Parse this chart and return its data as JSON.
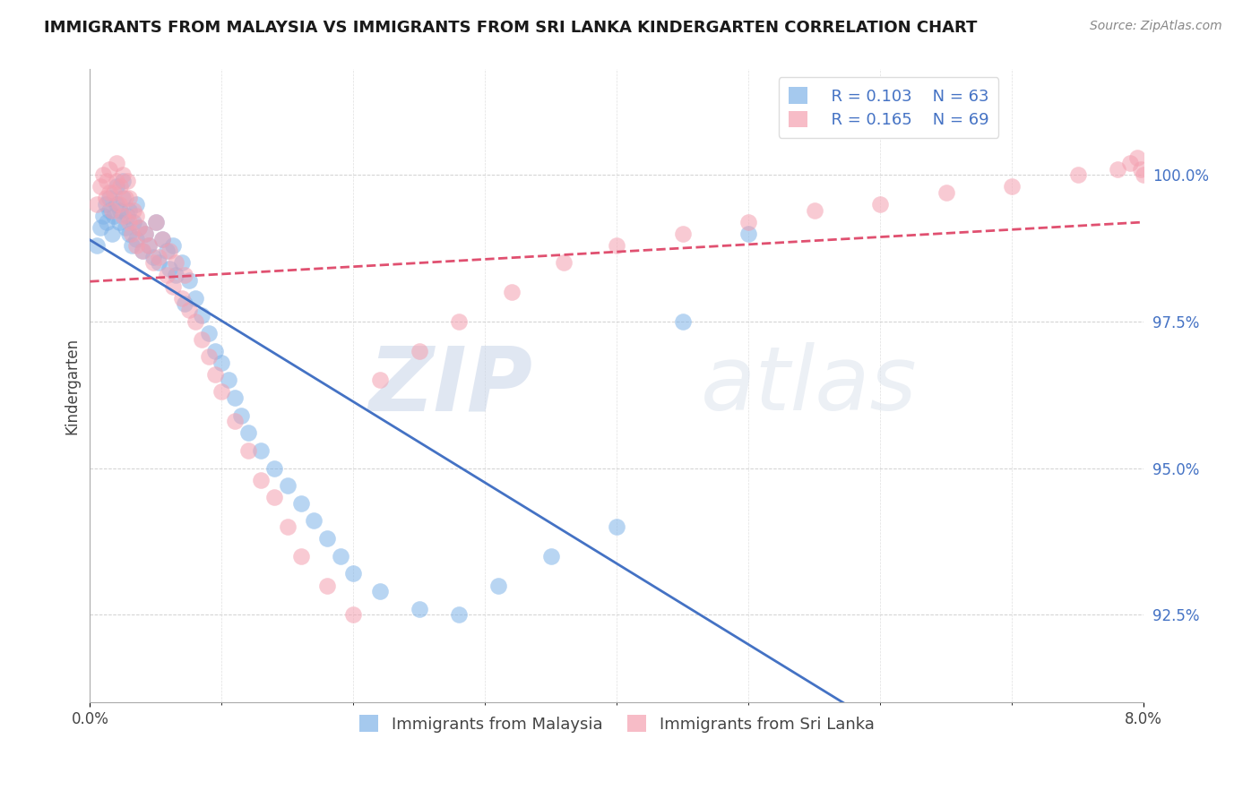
{
  "title": "IMMIGRANTS FROM MALAYSIA VS IMMIGRANTS FROM SRI LANKA KINDERGARTEN CORRELATION CHART",
  "source": "Source: ZipAtlas.com",
  "ylabel": "Kindergarten",
  "xlim": [
    0.0,
    8.0
  ],
  "ylim": [
    91.0,
    101.8
  ],
  "R_malaysia": 0.103,
  "N_malaysia": 63,
  "R_srilanka": 0.165,
  "N_srilanka": 69,
  "color_malaysia": "#7fb3e8",
  "color_srilanka": "#f4a0b0",
  "legend_label_malaysia": "Immigrants from Malaysia",
  "legend_label_srilanka": "Immigrants from Sri Lanka",
  "watermark_zip": "ZIP",
  "watermark_atlas": "atlas",
  "malaysia_x": [
    0.05,
    0.08,
    0.1,
    0.12,
    0.13,
    0.15,
    0.15,
    0.17,
    0.18,
    0.2,
    0.2,
    0.22,
    0.23,
    0.25,
    0.25,
    0.27,
    0.28,
    0.3,
    0.3,
    0.32,
    0.33,
    0.35,
    0.35,
    0.37,
    0.4,
    0.42,
    0.45,
    0.48,
    0.5,
    0.52,
    0.55,
    0.58,
    0.6,
    0.63,
    0.65,
    0.7,
    0.72,
    0.75,
    0.8,
    0.85,
    0.9,
    0.95,
    1.0,
    1.05,
    1.1,
    1.15,
    1.2,
    1.3,
    1.4,
    1.5,
    1.6,
    1.7,
    1.8,
    1.9,
    2.0,
    2.2,
    2.5,
    2.8,
    3.1,
    3.5,
    4.0,
    4.5,
    5.0
  ],
  "malaysia_y": [
    98.8,
    99.1,
    99.3,
    99.5,
    99.2,
    99.4,
    99.6,
    99.0,
    99.3,
    99.5,
    99.8,
    99.2,
    99.4,
    99.6,
    99.9,
    99.1,
    99.3,
    99.0,
    99.4,
    98.8,
    99.2,
    98.9,
    99.5,
    99.1,
    98.7,
    99.0,
    98.8,
    98.6,
    99.2,
    98.5,
    98.9,
    98.7,
    98.4,
    98.8,
    98.3,
    98.5,
    97.8,
    98.2,
    97.9,
    97.6,
    97.3,
    97.0,
    96.8,
    96.5,
    96.2,
    95.9,
    95.6,
    95.3,
    95.0,
    94.7,
    94.4,
    94.1,
    93.8,
    93.5,
    93.2,
    92.9,
    92.6,
    92.5,
    93.0,
    93.5,
    94.0,
    97.5,
    99.0
  ],
  "srilanka_x": [
    0.05,
    0.08,
    0.1,
    0.12,
    0.13,
    0.15,
    0.15,
    0.17,
    0.18,
    0.2,
    0.2,
    0.22,
    0.23,
    0.25,
    0.25,
    0.27,
    0.28,
    0.3,
    0.3,
    0.32,
    0.33,
    0.35,
    0.35,
    0.37,
    0.4,
    0.42,
    0.45,
    0.48,
    0.5,
    0.52,
    0.55,
    0.58,
    0.6,
    0.63,
    0.65,
    0.7,
    0.72,
    0.75,
    0.8,
    0.85,
    0.9,
    0.95,
    1.0,
    1.1,
    1.2,
    1.3,
    1.4,
    1.5,
    1.6,
    1.8,
    2.0,
    2.2,
    2.5,
    2.8,
    3.2,
    3.6,
    4.0,
    4.5,
    5.0,
    5.5,
    6.0,
    6.5,
    7.0,
    7.5,
    7.8,
    7.9,
    7.95,
    7.98,
    8.0
  ],
  "srilanka_y": [
    99.5,
    99.8,
    100.0,
    99.6,
    99.9,
    99.7,
    100.1,
    99.4,
    99.7,
    99.9,
    100.2,
    99.5,
    99.8,
    100.0,
    99.3,
    99.6,
    99.9,
    99.2,
    99.6,
    99.0,
    99.4,
    98.8,
    99.3,
    99.1,
    98.7,
    99.0,
    98.8,
    98.5,
    99.2,
    98.6,
    98.9,
    98.3,
    98.7,
    98.1,
    98.5,
    97.9,
    98.3,
    97.7,
    97.5,
    97.2,
    96.9,
    96.6,
    96.3,
    95.8,
    95.3,
    94.8,
    94.5,
    94.0,
    93.5,
    93.0,
    92.5,
    96.5,
    97.0,
    97.5,
    98.0,
    98.5,
    98.8,
    99.0,
    99.2,
    99.4,
    99.5,
    99.7,
    99.8,
    100.0,
    100.1,
    100.2,
    100.3,
    100.1,
    100.0
  ],
  "trendline_x_start": 0.0,
  "trendline_x_end": 8.0,
  "color_malaysia_line": "#4472c4",
  "color_srilanka_line": "#e05070",
  "ytick_vals": [
    92.5,
    95.0,
    97.5,
    100.0
  ],
  "grid_color": "#cccccc",
  "title_fontsize": 13,
  "tick_fontsize": 12,
  "ylabel_fontsize": 12,
  "legend_fontsize": 13,
  "scatter_size": 180,
  "scatter_alpha": 0.55
}
